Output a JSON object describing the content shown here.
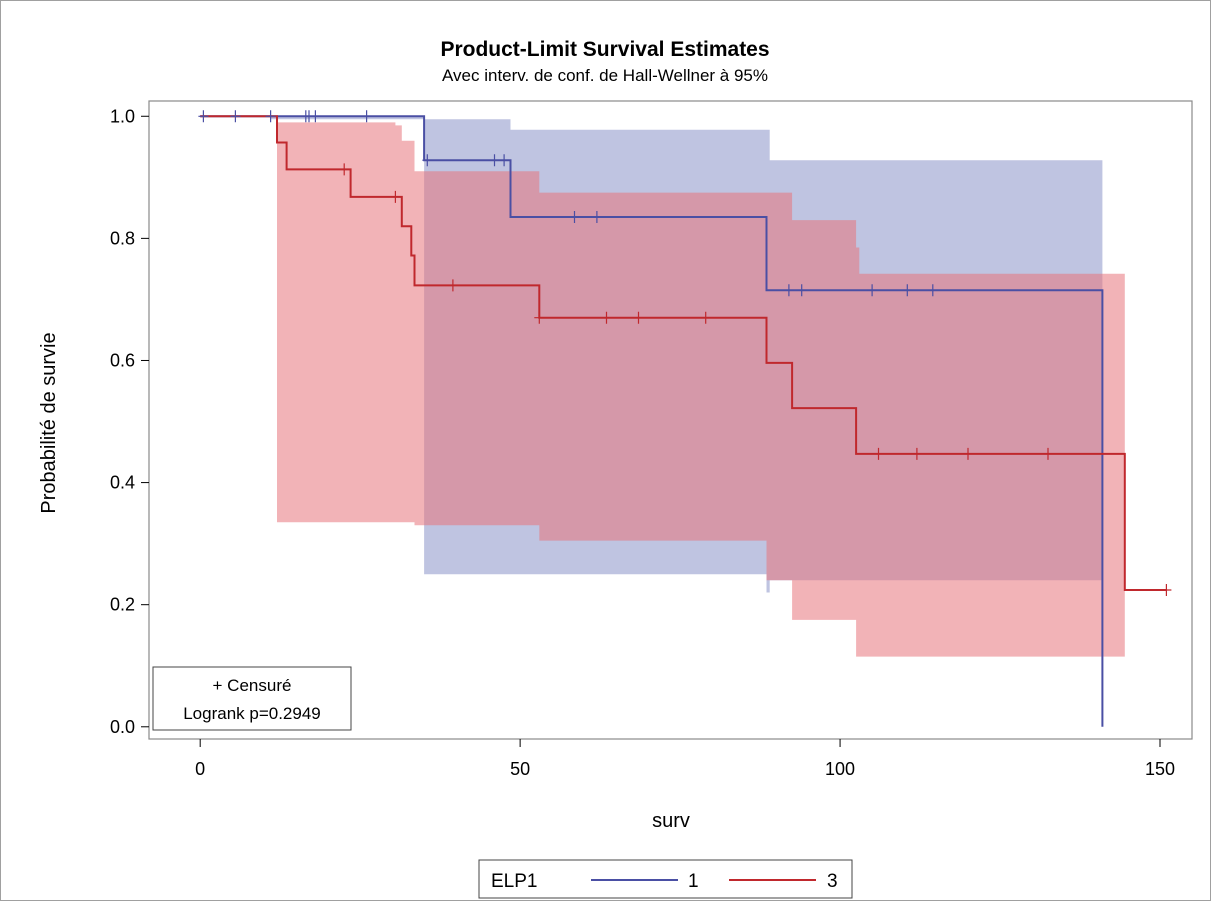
{
  "chart_data": {
    "type": "line",
    "title": "Product-Limit Survival Estimates",
    "subtitle": "Avec interv. de conf. de Hall-Wellner à 95%",
    "xlabel": "surv",
    "ylabel": "Probabilité de survie",
    "xlim": [
      -8,
      155
    ],
    "ylim": [
      -0.02,
      1.025
    ],
    "xticks": [
      0,
      50,
      100,
      150
    ],
    "xtick_labels": [
      "0",
      "50",
      "100",
      "150"
    ],
    "yticks": [
      0.0,
      0.2,
      0.4,
      0.6,
      0.8,
      1.0
    ],
    "ytick_labels": [
      "0.0",
      "0.2",
      "0.4",
      "0.6",
      "0.8",
      "1.0"
    ],
    "grid": false,
    "legend": {
      "title": "ELP1",
      "placement": "bottom",
      "entries": [
        "1",
        "3"
      ]
    },
    "inset": {
      "placement": "bottom-left",
      "censored_label": "+ Censuré",
      "logrank_label": "Logrank p=0.2949"
    },
    "series": [
      {
        "name": "1",
        "color": "#4a4fa4",
        "band_color": "#8b94c8",
        "steps": [
          [
            0,
            1.0
          ],
          [
            35,
            0.928
          ],
          [
            48.5,
            0.835
          ],
          [
            88.5,
            0.715
          ],
          [
            141,
            0.0
          ]
        ],
        "end_x": 141,
        "censored": [
          [
            0.5,
            1.0
          ],
          [
            5.5,
            1.0
          ],
          [
            11,
            1.0
          ],
          [
            16.5,
            1.0
          ],
          [
            17,
            1.0
          ],
          [
            18,
            1.0
          ],
          [
            26,
            1.0
          ],
          [
            35.5,
            0.928
          ],
          [
            46,
            0.928
          ],
          [
            47.5,
            0.928
          ],
          [
            58.5,
            0.835
          ],
          [
            62,
            0.835
          ],
          [
            92,
            0.715
          ],
          [
            94,
            0.715
          ],
          [
            105,
            0.715
          ],
          [
            110.5,
            0.715
          ],
          [
            114.5,
            0.715
          ]
        ],
        "ci_band": [
          [
            11,
            0.995,
            1.0
          ],
          [
            35,
            0.25,
            0.995
          ],
          [
            48.5,
            0.25,
            0.978
          ],
          [
            88.5,
            0.22,
            0.978
          ],
          [
            89,
            0.24,
            0.928
          ],
          [
            141,
            0.24,
            0.928
          ]
        ]
      },
      {
        "name": "3",
        "color": "#c0282d",
        "band_color": "#e8747b",
        "steps": [
          [
            0,
            1.0
          ],
          [
            12,
            0.957
          ],
          [
            13.5,
            0.913
          ],
          [
            23.5,
            0.868
          ],
          [
            31.5,
            0.82
          ],
          [
            33,
            0.772
          ],
          [
            33.5,
            0.723
          ],
          [
            53,
            0.67
          ],
          [
            88.5,
            0.596
          ],
          [
            92.5,
            0.522
          ],
          [
            102.5,
            0.447
          ],
          [
            144.5,
            0.224
          ]
        ],
        "end_x": 151,
        "censored": [
          [
            22.5,
            0.913
          ],
          [
            30.5,
            0.868
          ],
          [
            39.5,
            0.723
          ],
          [
            53,
            0.67
          ],
          [
            63.5,
            0.67
          ],
          [
            68.5,
            0.67
          ],
          [
            79,
            0.67
          ],
          [
            106,
            0.447
          ],
          [
            112,
            0.447
          ],
          [
            120,
            0.447
          ],
          [
            132.5,
            0.447
          ],
          [
            151,
            0.224
          ]
        ],
        "ci_band": [
          [
            12,
            0.335,
            0.99
          ],
          [
            30.5,
            0.335,
            0.985
          ],
          [
            31.5,
            0.335,
            0.96
          ],
          [
            33.5,
            0.33,
            0.91
          ],
          [
            53,
            0.305,
            0.875
          ],
          [
            88.5,
            0.24,
            0.875
          ],
          [
            92.5,
            0.175,
            0.83
          ],
          [
            102.5,
            0.115,
            0.785
          ],
          [
            103,
            0.115,
            0.742
          ],
          [
            144.5,
            0.115,
            0.742
          ]
        ]
      }
    ]
  }
}
